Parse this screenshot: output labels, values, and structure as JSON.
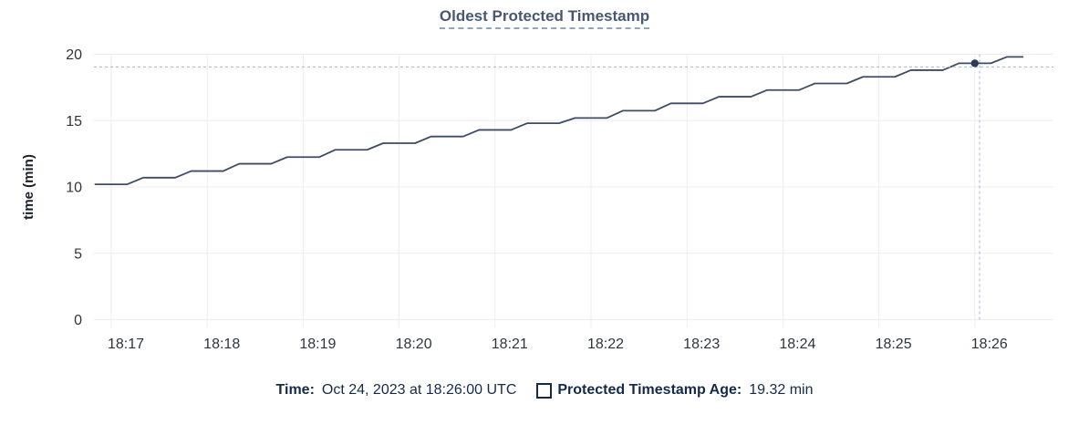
{
  "header": {
    "title": "Oldest Protected Timestamp"
  },
  "chart_data": {
    "type": "line",
    "title": "Oldest Protected Timestamp",
    "xlabel": "",
    "ylabel": "time (min)",
    "ylim": [
      0,
      20
    ],
    "y_ticks": [
      0,
      5,
      10,
      15,
      20
    ],
    "x_tick_labels": [
      "18:17",
      "18:18",
      "18:19",
      "18:20",
      "18:21",
      "18:22",
      "18:23",
      "18:24",
      "18:25",
      "18:26"
    ],
    "grid": true,
    "legend_position": "bottom",
    "series": [
      {
        "name": "Protected Timestamp Age",
        "unit": "min",
        "x_start": "18:16:50",
        "x_interval_seconds": 10,
        "values": [
          10.2,
          10.2,
          10.2,
          10.7,
          10.7,
          10.7,
          11.2,
          11.2,
          11.2,
          11.75,
          11.75,
          11.75,
          12.25,
          12.25,
          12.25,
          12.8,
          12.8,
          12.8,
          13.3,
          13.3,
          13.3,
          13.8,
          13.8,
          13.8,
          14.3,
          14.3,
          14.3,
          14.8,
          14.8,
          14.8,
          15.2,
          15.2,
          15.2,
          15.75,
          15.75,
          15.75,
          16.3,
          16.3,
          16.3,
          16.8,
          16.8,
          16.8,
          17.3,
          17.3,
          17.3,
          17.8,
          17.8,
          17.8,
          18.3,
          18.3,
          18.3,
          18.8,
          18.8,
          18.8,
          19.32,
          19.32,
          19.32,
          19.8,
          19.8
        ]
      }
    ],
    "hover": {
      "point_time": "18:26:00",
      "point_value": 19.32,
      "cursor_time": "18:26:03",
      "cursor_value": 19.05
    }
  },
  "legend": {
    "time_label": "Time:",
    "time_value": "Oct 24, 2023 at 18:26:00 UTC",
    "series_label": "Protected Timestamp Age:",
    "series_value": "19.32 min"
  },
  "colors": {
    "title": "#475872",
    "title_underline": "#93a5ba",
    "axis_text": "#2f343c",
    "grid": "#ededed",
    "line": "#3d4c66",
    "dot": "#2c3a55",
    "crosshair": "#a2b5c4",
    "legend_text": "#152a4a"
  }
}
